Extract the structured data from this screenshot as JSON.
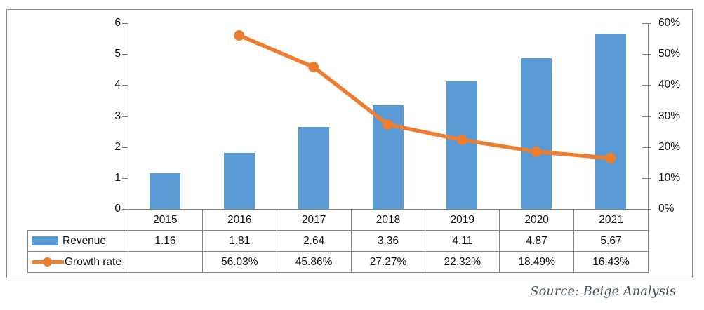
{
  "chart_data": {
    "type": "combo",
    "categories": [
      "2015",
      "2016",
      "2017",
      "2018",
      "2019",
      "2020",
      "2021"
    ],
    "series": [
      {
        "name": "Revenue",
        "chart": "bar",
        "axis": "left",
        "color": "#5B9BD5",
        "values": [
          1.16,
          1.81,
          2.64,
          3.36,
          4.11,
          4.87,
          5.67
        ],
        "display": [
          "1.16",
          "1.81",
          "2.64",
          "3.36",
          "4.11",
          "4.87",
          "5.67"
        ]
      },
      {
        "name": "Growth rate",
        "chart": "line",
        "axis": "right",
        "color": "#ED7D31",
        "values": [
          null,
          56.03,
          45.86,
          27.27,
          22.32,
          18.49,
          16.43
        ],
        "display": [
          "",
          "56.03%",
          "45.86%",
          "27.27%",
          "22.32%",
          "18.49%",
          "16.43%"
        ]
      }
    ],
    "left_axis": {
      "min": 0,
      "max": 6,
      "tick_labels": [
        "0",
        "1",
        "2",
        "3",
        "4",
        "5",
        "6"
      ]
    },
    "right_axis": {
      "min": 0,
      "max": 60,
      "tick_labels": [
        "0%",
        "10%",
        "20%",
        "30%",
        "40%",
        "50%",
        "60%"
      ]
    },
    "gridlines": false,
    "legend_position": "data-table-left"
  },
  "source_note": "Source: Beige Analysis",
  "colors": {
    "bar": "#5B9BD5",
    "line": "#ED7D31",
    "table_border": "#808080",
    "axis": "#808080",
    "panel_border": "#8C8C8C",
    "text": "#111111",
    "source_text": "#3D4F5A"
  }
}
